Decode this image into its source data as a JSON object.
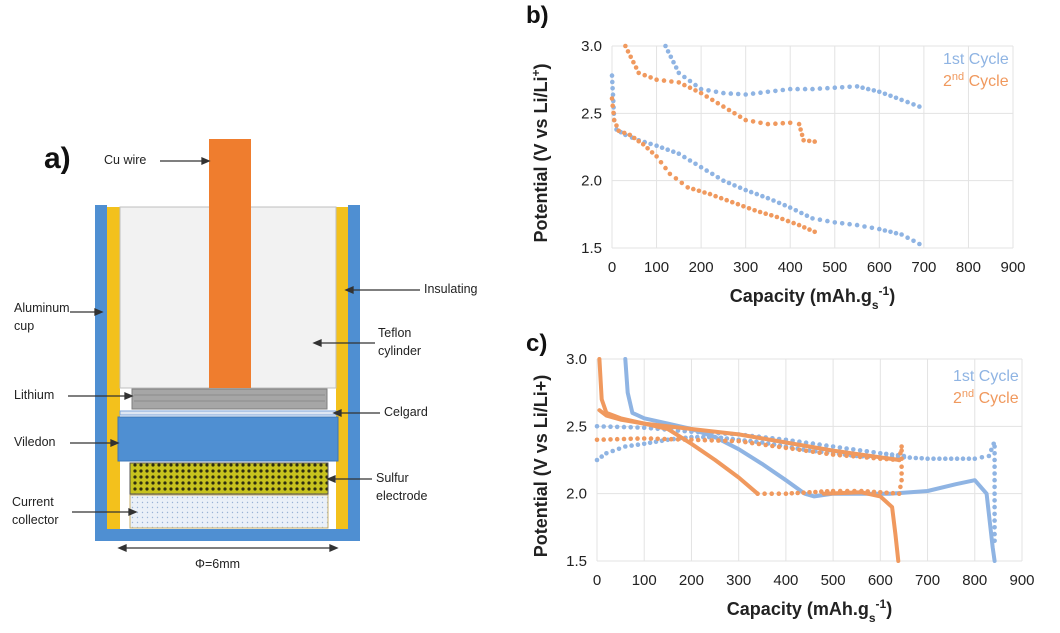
{
  "panel_a": {
    "letter": "a)",
    "labels": {
      "cu_wire": "Cu wire",
      "insulating": "Insulating",
      "aluminum_cup_1": "Aluminum",
      "aluminum_cup_2": "cup",
      "teflon_1": "Teflon",
      "teflon_2": "cylinder",
      "lithium": "Lithium",
      "celgard": "Celgard",
      "viledon": "Viledon",
      "sulfur_1": "Sulfur",
      "sulfur_2": "electrode",
      "current_collector_1": "Current",
      "current_collector_2": "collector",
      "diameter": "Φ=6mm"
    },
    "colors": {
      "aluminum": "#4f8fd2",
      "insulating": "#f3c11c",
      "teflon": "#f2f2f2",
      "cu_wire": "#ef7d2e",
      "lithium": "#a6a6a6",
      "viledon": "#4f8fd2",
      "sulfur": "#c7c21e",
      "current_collector": "#dfe7f3"
    }
  },
  "panel_b": {
    "letter": "b)"
  },
  "panel_c": {
    "letter": "c)"
  },
  "chart_data": [
    {
      "type": "scatter",
      "panel": "b",
      "xlabel_main": "Capacity (mAh.g",
      "xlabel_sub": "s",
      "xlabel_sup": "-1",
      "xlabel_tail": ")",
      "ylabel_main": "Potential (V vs Li/Li",
      "ylabel_sup": "+",
      "ylabel_tail": ")",
      "xlim": [
        0,
        900
      ],
      "ylim": [
        1.5,
        3.0
      ],
      "xticks": [
        "0",
        "100",
        "200",
        "300",
        "400",
        "500",
        "600",
        "700",
        "800",
        "900"
      ],
      "yticks": [
        "1.5",
        "2.0",
        "2.5",
        "3.0"
      ],
      "grid": true,
      "legend_position": "top-right",
      "legend": [
        {
          "main": "1st Cycle",
          "sup": "",
          "tail": "",
          "color": "#8fb4e3"
        },
        {
          "main": "2",
          "sup": "nd",
          "tail": " Cycle",
          "color": "#f0995e"
        }
      ],
      "series": [
        {
          "name": "1st Cycle",
          "color": "#8fb4e3",
          "style": "dots",
          "segments": [
            [
              [
                0,
                2.78
              ],
              [
                5,
                2.45
              ],
              [
                10,
                2.38
              ],
              [
                30,
                2.34
              ],
              [
                60,
                2.3
              ],
              [
                100,
                2.26
              ],
              [
                150,
                2.2
              ],
              [
                200,
                2.1
              ],
              [
                250,
                2.0
              ],
              [
                300,
                1.93
              ],
              [
                350,
                1.87
              ],
              [
                400,
                1.8
              ],
              [
                450,
                1.72
              ],
              [
                500,
                1.69
              ],
              [
                550,
                1.67
              ],
              [
                600,
                1.64
              ],
              [
                650,
                1.6
              ],
              [
                690,
                1.53
              ]
            ],
            [
              [
                120,
                3.0
              ],
              [
                150,
                2.8
              ],
              [
                200,
                2.68
              ],
              [
                250,
                2.65
              ],
              [
                300,
                2.64
              ],
              [
                350,
                2.66
              ],
              [
                400,
                2.68
              ],
              [
                450,
                2.68
              ],
              [
                500,
                2.69
              ],
              [
                550,
                2.7
              ],
              [
                600,
                2.66
              ],
              [
                650,
                2.6
              ],
              [
                690,
                2.55
              ]
            ]
          ]
        },
        {
          "name": "2nd Cycle",
          "color": "#f0995e",
          "style": "dots",
          "segments": [
            [
              [
                0,
                2.61
              ],
              [
                5,
                2.45
              ],
              [
                15,
                2.37
              ],
              [
                40,
                2.34
              ],
              [
                70,
                2.27
              ],
              [
                100,
                2.18
              ],
              [
                130,
                2.05
              ],
              [
                170,
                1.95
              ],
              [
                220,
                1.9
              ],
              [
                270,
                1.84
              ],
              [
                320,
                1.78
              ],
              [
                370,
                1.73
              ],
              [
                420,
                1.67
              ],
              [
                455,
                1.62
              ]
            ],
            [
              [
                30,
                3.0
              ],
              [
                60,
                2.8
              ],
              [
                100,
                2.75
              ],
              [
                150,
                2.73
              ],
              [
                200,
                2.65
              ],
              [
                250,
                2.55
              ],
              [
                300,
                2.45
              ],
              [
                350,
                2.42
              ],
              [
                400,
                2.43
              ],
              [
                420,
                2.42
              ],
              [
                430,
                2.3
              ],
              [
                455,
                2.29
              ]
            ]
          ]
        }
      ]
    },
    {
      "type": "line",
      "panel": "c",
      "xlabel_main": "Capacity (mAh.g",
      "xlabel_sub": "s",
      "xlabel_sup": "-1",
      "xlabel_tail": ")",
      "ylabel_main": "Potential (V vs Li/Li+)",
      "ylabel_sup": "",
      "ylabel_tail": "",
      "xlim": [
        0,
        900
      ],
      "ylim": [
        1.5,
        3.0
      ],
      "xticks": [
        "0",
        "100",
        "200",
        "300",
        "400",
        "500",
        "600",
        "700",
        "800",
        "900"
      ],
      "yticks": [
        "1.5",
        "2.0",
        "2.5",
        "3.0"
      ],
      "grid": true,
      "legend_position": "top-right",
      "legend": [
        {
          "main": "1st Cycle",
          "sup": "",
          "tail": "",
          "color": "#8fb4e3"
        },
        {
          "main": "2",
          "sup": "nd",
          "tail": " Cycle",
          "color": "#f0995e"
        }
      ],
      "series": [
        {
          "name": "1st Cycle",
          "color": "#8fb4e3",
          "style": "line",
          "segments": [
            [
              [
                60,
                3.0
              ],
              [
                65,
                2.75
              ],
              [
                75,
                2.6
              ],
              [
                100,
                2.56
              ],
              [
                150,
                2.52
              ],
              [
                200,
                2.48
              ],
              [
                250,
                2.42
              ],
              [
                300,
                2.33
              ],
              [
                350,
                2.22
              ],
              [
                400,
                2.1
              ],
              [
                440,
                2.0
              ],
              [
                460,
                1.98
              ],
              [
                500,
                2.0
              ],
              [
                560,
                2.0
              ],
              [
                620,
                2.0
              ],
              [
                700,
                2.02
              ],
              [
                760,
                2.07
              ],
              [
                800,
                2.1
              ],
              [
                825,
                2.0
              ],
              [
                838,
                1.6
              ],
              [
                842,
                1.5
              ]
            ]
          ]
        },
        {
          "name": "1st Cycle dotted",
          "color": "#8fb4e3",
          "style": "dots",
          "segments": [
            [
              [
                0,
                2.25
              ],
              [
                20,
                2.3
              ],
              [
                60,
                2.35
              ],
              [
                100,
                2.37
              ],
              [
                150,
                2.4
              ],
              [
                200,
                2.42
              ],
              [
                250,
                2.42
              ],
              [
                300,
                2.4
              ],
              [
                350,
                2.38
              ],
              [
                400,
                2.35
              ],
              [
                450,
                2.32
              ],
              [
                500,
                2.3
              ],
              [
                550,
                2.28
              ],
              [
                600,
                2.27
              ],
              [
                650,
                2.27
              ],
              [
                700,
                2.26
              ],
              [
                750,
                2.26
              ],
              [
                800,
                2.26
              ],
              [
                830,
                2.28
              ],
              [
                840,
                2.37
              ]
            ],
            [
              [
                0,
                2.5
              ],
              [
                100,
                2.49
              ],
              [
                200,
                2.46
              ],
              [
                300,
                2.44
              ],
              [
                400,
                2.4
              ],
              [
                500,
                2.35
              ],
              [
                600,
                2.3
              ],
              [
                650,
                2.28
              ]
            ],
            [
              [
                842,
                2.35
              ],
              [
                842,
                2.25
              ],
              [
                842,
                2.1
              ],
              [
                842,
                1.95
              ],
              [
                842,
                1.8
              ],
              [
                842,
                1.65
              ]
            ]
          ]
        },
        {
          "name": "2nd Cycle",
          "color": "#f0995e",
          "style": "line",
          "segments": [
            [
              [
                5,
                3.0
              ],
              [
                10,
                2.7
              ],
              [
                20,
                2.6
              ],
              [
                50,
                2.56
              ],
              [
                100,
                2.52
              ],
              [
                150,
                2.48
              ],
              [
                200,
                2.37
              ],
              [
                250,
                2.25
              ],
              [
                300,
                2.12
              ],
              [
                340,
                2.0
              ]
            ],
            [
              [
                5,
                2.62
              ],
              [
                20,
                2.58
              ],
              [
                50,
                2.55
              ],
              [
                100,
                2.52
              ],
              [
                200,
                2.48
              ],
              [
                300,
                2.44
              ],
              [
                400,
                2.38
              ],
              [
                500,
                2.32
              ],
              [
                600,
                2.27
              ],
              [
                640,
                2.25
              ]
            ],
            [
              [
                480,
                2.0
              ],
              [
                560,
                2.01
              ],
              [
                600,
                1.98
              ],
              [
                625,
                1.9
              ],
              [
                632,
                1.7
              ],
              [
                638,
                1.5
              ]
            ]
          ]
        },
        {
          "name": "2nd Cycle dotted",
          "color": "#f0995e",
          "style": "dots",
          "segments": [
            [
              [
                0,
                2.4
              ],
              [
                100,
                2.41
              ],
              [
                200,
                2.4
              ],
              [
                300,
                2.39
              ],
              [
                400,
                2.34
              ],
              [
                500,
                2.29
              ],
              [
                600,
                2.26
              ],
              [
                640,
                2.25
              ],
              [
                645,
                2.35
              ]
            ],
            [
              [
                340,
                2.0
              ],
              [
                400,
                2.0
              ],
              [
                450,
                2.01
              ],
              [
                500,
                2.02
              ],
              [
                560,
                2.02
              ],
              [
                600,
                2.01
              ],
              [
                640,
                2.0
              ],
              [
                645,
                2.1
              ],
              [
                645,
                2.2
              ],
              [
                645,
                2.32
              ]
            ]
          ]
        }
      ]
    }
  ]
}
